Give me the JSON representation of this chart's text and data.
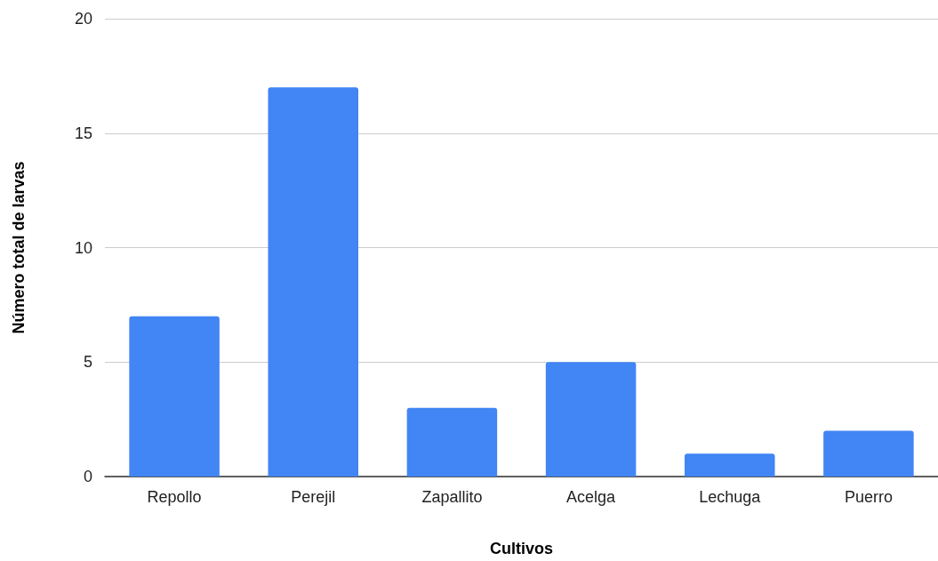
{
  "chart_data": {
    "type": "bar",
    "xlabel": "Cultivos",
    "ylabel": "Número total de larvas",
    "categories": [
      "Repollo",
      "Perejil",
      "Zapallito",
      "Acelga",
      "Lechuga",
      "Puerro"
    ],
    "values": [
      7,
      17,
      3,
      5,
      1,
      2
    ],
    "color": "#4285f4",
    "ylim": [
      0,
      20
    ],
    "yticks": [
      0,
      5,
      10,
      15,
      20
    ],
    "grid": "y"
  }
}
